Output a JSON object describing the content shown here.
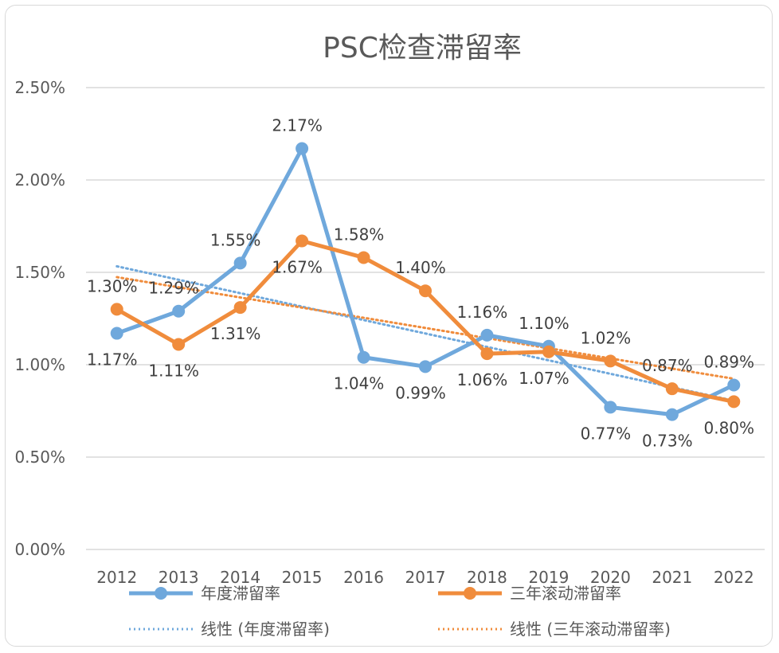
{
  "chart_data": {
    "type": "line",
    "title": "PSC检查滞留率",
    "categories": [
      "2012",
      "2013",
      "2014",
      "2015",
      "2016",
      "2017",
      "2018",
      "2019",
      "2020",
      "2021",
      "2022"
    ],
    "y_ticks": [
      "0.00%",
      "0.50%",
      "1.00%",
      "1.50%",
      "2.00%",
      "2.50%"
    ],
    "ylim": [
      0,
      2.5
    ],
    "grid": true,
    "legend_position": "bottom",
    "series": [
      {
        "name": "年度滞留率",
        "color": "#6fa8dc",
        "values": [
          1.17,
          1.29,
          1.55,
          2.17,
          1.04,
          0.99,
          1.16,
          1.1,
          0.77,
          0.73,
          0.89
        ],
        "labels": [
          "1.17%",
          "1.29%",
          "1.55%",
          "2.17%",
          "1.04%",
          "0.99%",
          "1.16%",
          "1.10%",
          "0.77%",
          "0.73%",
          "0.89%"
        ]
      },
      {
        "name": "三年滚动滞留率",
        "color": "#f08c3c",
        "values": [
          1.3,
          1.11,
          1.31,
          1.67,
          1.58,
          1.4,
          1.06,
          1.07,
          1.02,
          0.87,
          0.8
        ],
        "labels": [
          "1.30%",
          "1.11%",
          "1.31%",
          "1.67%",
          "1.58%",
          "1.40%",
          "1.06%",
          "1.07%",
          "1.02%",
          "0.87%",
          "0.80%"
        ]
      }
    ],
    "trendlines": [
      {
        "name": "线性 (年度滞留率)",
        "color": "#6fa8dc",
        "style": "dotted"
      },
      {
        "name": "线性 (三年滚动滞留率)",
        "color": "#f08c3c",
        "style": "dotted"
      }
    ]
  }
}
